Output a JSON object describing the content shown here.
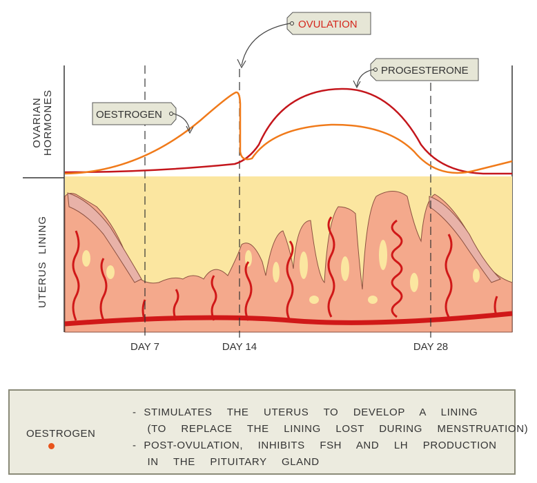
{
  "diagram": {
    "hormone_axis_label": [
      "OVARIAN",
      "HORMONES"
    ],
    "lining_axis_label": "UTERUS  LINING",
    "callouts": {
      "ovulation": "OVULATION",
      "progesterone": "PROGESTERONE",
      "oestrogen": "OESTROGEN"
    },
    "day_labels": [
      "DAY 7",
      "DAY 14",
      "DAY 28"
    ],
    "colors": {
      "oestrogen": "#f07a1a",
      "progesterone": "#c4161c",
      "ovulation_text": "#d4261c",
      "lining": "#f4a98c",
      "lining_bg": "#fbe6a0",
      "vessel": "#d01818",
      "callout_bg": "#e6e6d6"
    }
  },
  "info_box": {
    "hormone": "OESTROGEN",
    "lines": [
      "- STIMULATES  THE  UTERUS  TO  DEVELOP  A  LINING",
      "  (TO  REPLACE  THE  LINING  LOST  DURING  MENSTRUATION)",
      "- POST-OVULATION,  INHIBITS  FSH  AND  LH  PRODUCTION",
      "  IN  THE  PITUITARY  GLAND"
    ]
  }
}
